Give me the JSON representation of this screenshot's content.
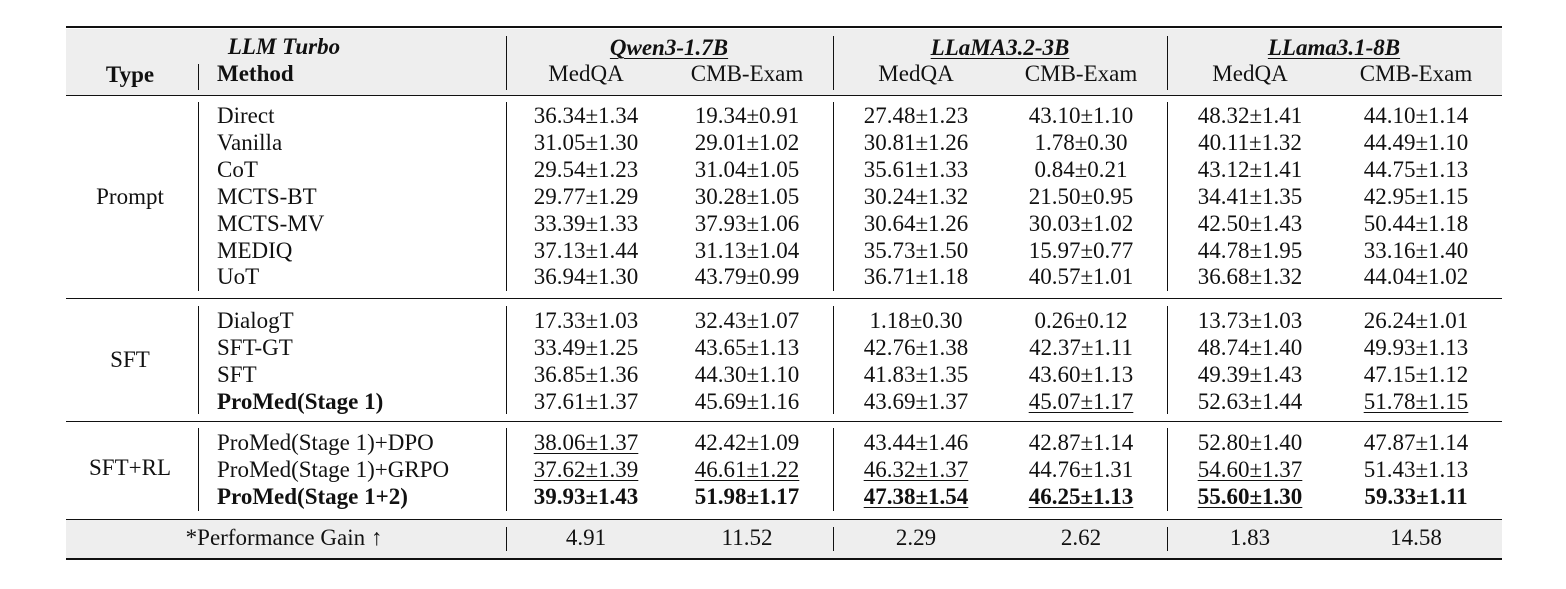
{
  "header": {
    "llm_turbo": "LLM Turbo",
    "type": "Type",
    "method": "Method",
    "models": [
      "Qwen3-1.7B",
      "LLaMA3.2-3B",
      "LLama3.1-8B"
    ],
    "datasets": [
      "MedQA",
      "CMB-Exam",
      "MedQA",
      "CMB-Exam",
      "MedQA",
      "CMB-Exam"
    ]
  },
  "groups": [
    {
      "type": "Prompt",
      "rows": [
        {
          "method": "Direct",
          "values": [
            "36.34±1.34",
            "19.34±0.91",
            "27.48±1.23",
            "43.10±1.10",
            "48.32±1.41",
            "44.10±1.14"
          ]
        },
        {
          "method": "Vanilla",
          "values": [
            "31.05±1.30",
            "29.01±1.02",
            "30.81±1.26",
            "1.78±0.30",
            "40.11±1.32",
            "44.49±1.10"
          ]
        },
        {
          "method": "CoT",
          "values": [
            "29.54±1.23",
            "31.04±1.05",
            "35.61±1.33",
            "0.84±0.21",
            "43.12±1.41",
            "44.75±1.13"
          ]
        },
        {
          "method": "MCTS-BT",
          "values": [
            "29.77±1.29",
            "30.28±1.05",
            "30.24±1.32",
            "21.50±0.95",
            "34.41±1.35",
            "42.95±1.15"
          ]
        },
        {
          "method": "MCTS-MV",
          "values": [
            "33.39±1.33",
            "37.93±1.06",
            "30.64±1.26",
            "30.03±1.02",
            "42.50±1.43",
            "50.44±1.18"
          ]
        },
        {
          "method": "MEDIQ",
          "values": [
            "37.13±1.44",
            "31.13±1.04",
            "35.73±1.50",
            "15.97±0.77",
            "44.78±1.95",
            "33.16±1.40"
          ]
        },
        {
          "method": "UoT",
          "values": [
            "36.94±1.30",
            "43.79±0.99",
            "36.71±1.18",
            "40.57±1.01",
            "36.68±1.32",
            "44.04±1.02"
          ]
        }
      ]
    },
    {
      "type": "SFT",
      "rows": [
        {
          "method": "DialogT",
          "values": [
            "17.33±1.03",
            "32.43±1.07",
            "1.18±0.30",
            "0.26±0.12",
            "13.73±1.03",
            "26.24±1.01"
          ]
        },
        {
          "method": "SFT-GT",
          "values": [
            "33.49±1.25",
            "43.65±1.13",
            "42.76±1.38",
            "42.37±1.11",
            "48.74±1.40",
            "49.93±1.13"
          ]
        },
        {
          "method": "SFT",
          "values": [
            "36.85±1.36",
            "44.30±1.10",
            "41.83±1.35",
            "43.60±1.13",
            "49.39±1.43",
            "47.15±1.12"
          ]
        },
        {
          "method": "ProMed(Stage 1)",
          "values": [
            "37.61±1.37",
            "45.69±1.16",
            "43.69±1.37",
            "45.07±1.17",
            "52.63±1.44",
            "51.78±1.15"
          ]
        }
      ]
    },
    {
      "type": "SFT+RL",
      "rows": [
        {
          "method": "ProMed(Stage 1)+DPO",
          "values": [
            "38.06±1.37",
            "42.42±1.09",
            "43.44±1.46",
            "42.87±1.14",
            "52.80±1.40",
            "47.87±1.14"
          ]
        },
        {
          "method": "ProMed(Stage 1)+GRPO",
          "values": [
            "37.62±1.39",
            "46.61±1.22",
            "46.32±1.37",
            "44.76±1.31",
            "54.60±1.37",
            "51.43±1.13"
          ]
        },
        {
          "method": "ProMed(Stage 1+2)",
          "values": [
            "39.93±1.43",
            "51.98±1.17",
            "47.38±1.54",
            "46.25±1.13",
            "55.60±1.30",
            "59.33±1.11"
          ]
        }
      ]
    }
  ],
  "footer": {
    "label": "*Performance Gain ↑",
    "values": [
      "4.91",
      "11.52",
      "2.29",
      "2.62",
      "1.83",
      "14.58"
    ]
  }
}
